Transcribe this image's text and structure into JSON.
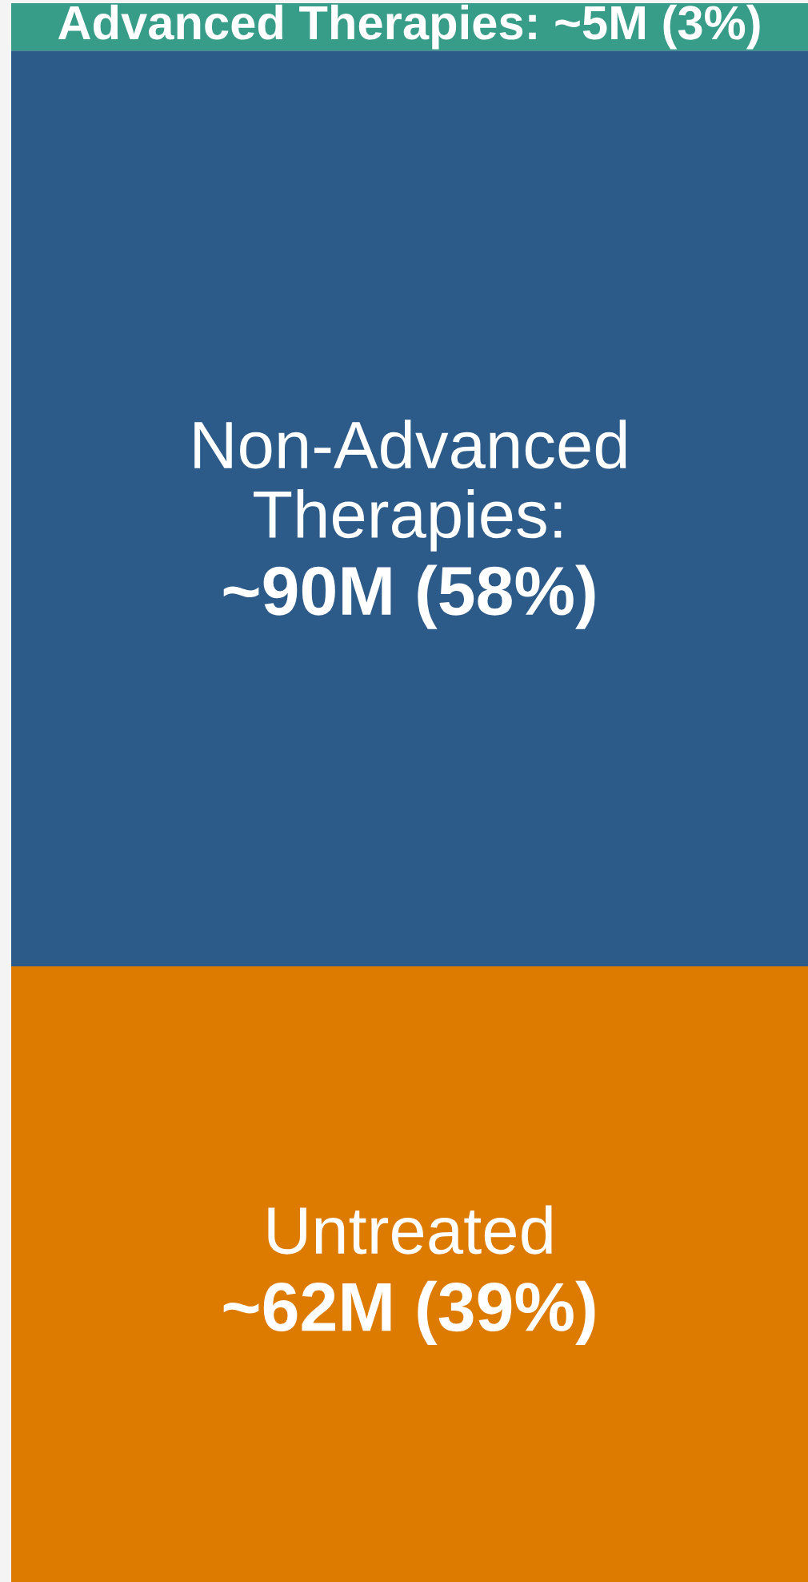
{
  "chart_data": {
    "type": "bar",
    "stacked": true,
    "categories": [
      null
    ],
    "tick_labels": false,
    "series": [
      {
        "name": "Untreated",
        "color": "#dd7b00",
        "values": [
          39
        ],
        "value_labels": [
          "~62M (39%)"
        ]
      },
      {
        "name": "Non-Advanced Therapies:",
        "color": "#2c5b89",
        "values": [
          58
        ],
        "value_labels": [
          "~90M (58%)"
        ]
      },
      {
        "name": "Advanced Therapies:",
        "color": "#379c88",
        "values": [
          3
        ],
        "value_labels": [
          "~5M (3%)"
        ]
      }
    ]
  }
}
